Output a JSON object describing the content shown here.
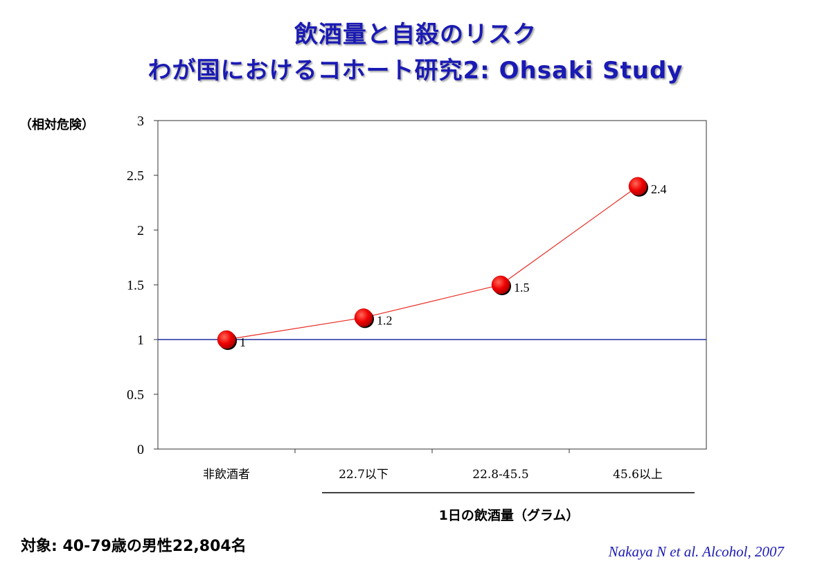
{
  "titles": {
    "line1": "飲酒量と自殺のリスク",
    "line2": "わが国におけるコホート研究2: Ohsaki Study"
  },
  "chart_data": {
    "type": "line",
    "ylabel": "（相対危険）",
    "xlabel": "1日の飲酒量（グラム）",
    "categories": [
      "非飲酒者",
      "22.7以下",
      "22.8-45.5",
      "45.6以上"
    ],
    "series": [
      {
        "values": [
          1,
          1.2,
          1.5,
          2.4
        ]
      }
    ],
    "data_labels": [
      "1",
      "1.2",
      "1.5",
      "2.4"
    ],
    "yticks": [
      "0",
      "0.5",
      "1",
      "1.5",
      "2",
      "2.5",
      "3"
    ],
    "ylim": [
      0,
      3
    ],
    "reference_line": 1,
    "grid": false,
    "colors": {
      "line": "#e8281e",
      "marker": "#ee0000",
      "reference": "#1f2fa0"
    }
  },
  "footer": {
    "subjects": "対象: 40-79歳の男性22,804名",
    "citation": "Nakaya N et al. Alcohol, 2007"
  }
}
